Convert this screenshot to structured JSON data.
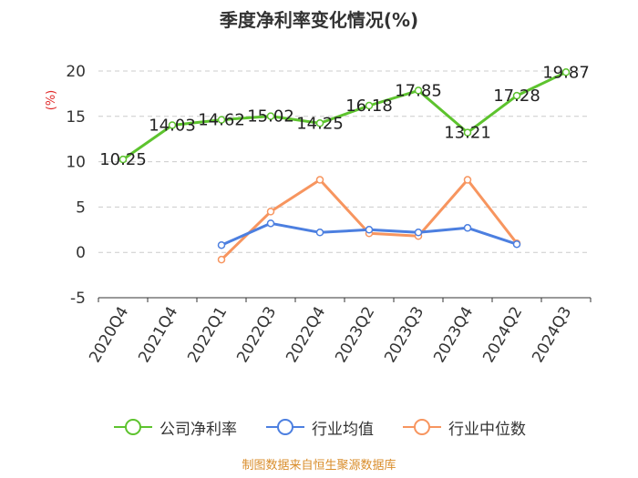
{
  "title": "季度净利率变化情况(%)",
  "source": "制图数据来自恒生聚源数据库",
  "colors": {
    "company": "#5dc32e",
    "industry_avg": "#4c7fe0",
    "industry_median": "#f7955f",
    "source": "#d98d2b",
    "ylabel": "#e02a2a"
  },
  "chart_data": {
    "type": "line",
    "title": "季度净利率变化情况(%)",
    "xlabel": "",
    "ylabel": "(%)",
    "ylim": [
      -5,
      20
    ],
    "yticks": [
      -5,
      0,
      5,
      10,
      15,
      20
    ],
    "grid": true,
    "legend_position": "bottom",
    "categories": [
      "2020Q4",
      "2021Q4",
      "2022Q1",
      "2022Q3",
      "2022Q4",
      "2023Q2",
      "2023Q3",
      "2023Q4",
      "2024Q2",
      "2024Q3"
    ],
    "series": [
      {
        "name": "公司净利率",
        "color": "#5dc32e",
        "values": [
          10.25,
          14.03,
          14.62,
          15.02,
          14.25,
          16.18,
          17.85,
          13.21,
          17.28,
          19.87
        ],
        "labels": [
          "10.25",
          "14.03",
          "14.62",
          "15.02",
          "14.25",
          "16.18",
          "17.85",
          "13.21",
          "17.28",
          "19.87"
        ]
      },
      {
        "name": "行业均值",
        "color": "#4c7fe0",
        "values": [
          null,
          null,
          0.8,
          3.2,
          2.2,
          2.5,
          2.2,
          2.7,
          0.9,
          null
        ]
      },
      {
        "name": "行业中位数",
        "color": "#f7955f",
        "values": [
          null,
          null,
          -0.8,
          4.5,
          8.0,
          2.1,
          1.8,
          8.0,
          1.0,
          null
        ]
      }
    ]
  }
}
